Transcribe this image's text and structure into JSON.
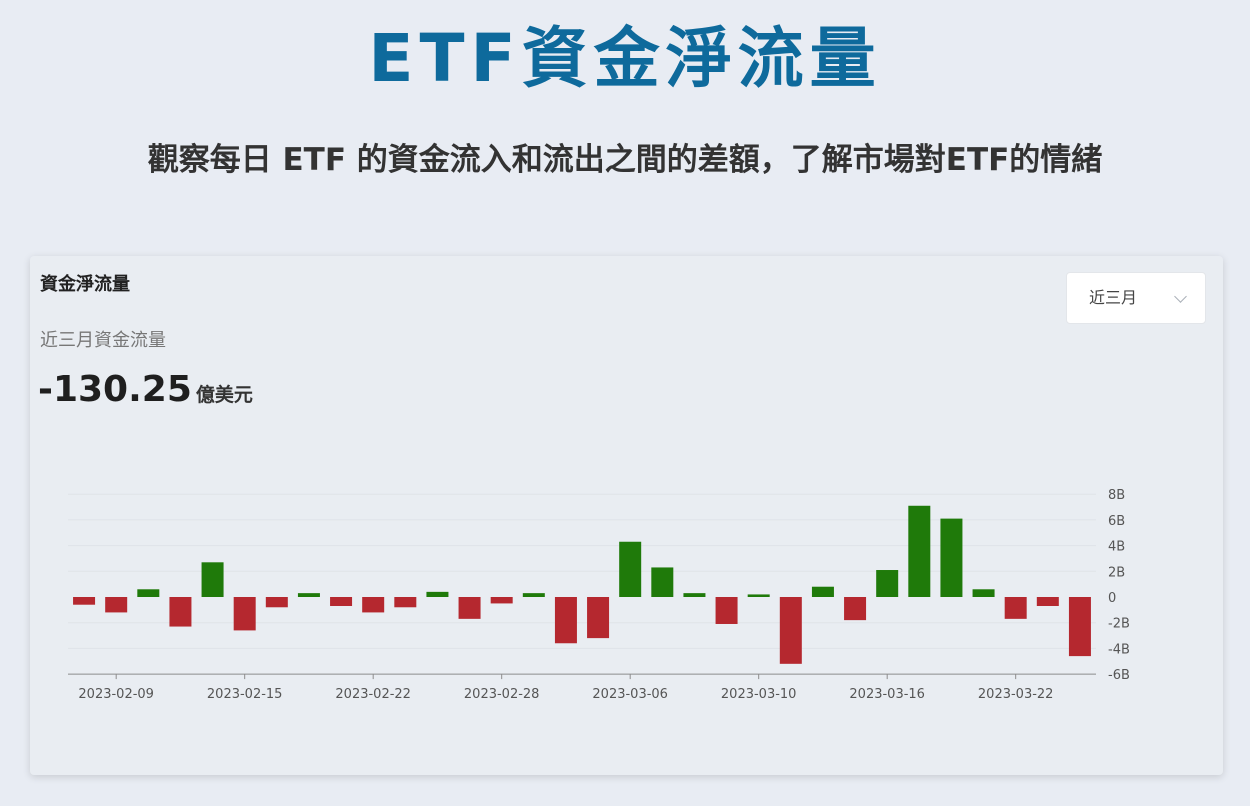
{
  "header": {
    "title": "ETF資金淨流量",
    "subtitle": "觀察每日 ETF 的資金流入和流出之間的差額，了解市場對ETF的情緒"
  },
  "card": {
    "title": "資金淨流量",
    "period_selected": "近三月",
    "flow_label": "近三月資金流量",
    "flow_value": "-130.25",
    "flow_unit": "億美元"
  },
  "colors": {
    "positive": "#1f7a0a",
    "negative": "#b5282f",
    "axis": "#8c8c8c",
    "grid": "#dfe3e8"
  },
  "chart_data": {
    "type": "bar",
    "title": "",
    "xlabel": "",
    "ylabel": "",
    "ylim": [
      -6,
      8
    ],
    "yticks": [
      8,
      6,
      4,
      2,
      0,
      -2,
      -4,
      -6
    ],
    "ytick_labels": [
      "8B",
      "6B",
      "4B",
      "2B",
      "0",
      "-2B",
      "-4B",
      "-6B"
    ],
    "xtick_labels": [
      "2023-02-09",
      "2023-02-15",
      "2023-02-22",
      "2023-02-28",
      "2023-03-06",
      "2023-03-10",
      "2023-03-16",
      "2023-03-22"
    ],
    "xtick_indices": [
      1,
      5,
      9,
      13,
      17,
      21,
      25,
      29
    ],
    "unit": "B",
    "values": [
      -0.6,
      -1.2,
      0.6,
      -2.3,
      2.7,
      -2.6,
      -0.8,
      0.3,
      -0.7,
      -1.2,
      -0.8,
      0.4,
      -1.7,
      -0.5,
      0.3,
      -3.6,
      -3.2,
      4.3,
      2.3,
      0.3,
      -2.1,
      0.2,
      -5.2,
      0.8,
      -1.8,
      2.1,
      7.1,
      6.1,
      0.6,
      -1.7,
      -0.7,
      -4.6
    ]
  }
}
